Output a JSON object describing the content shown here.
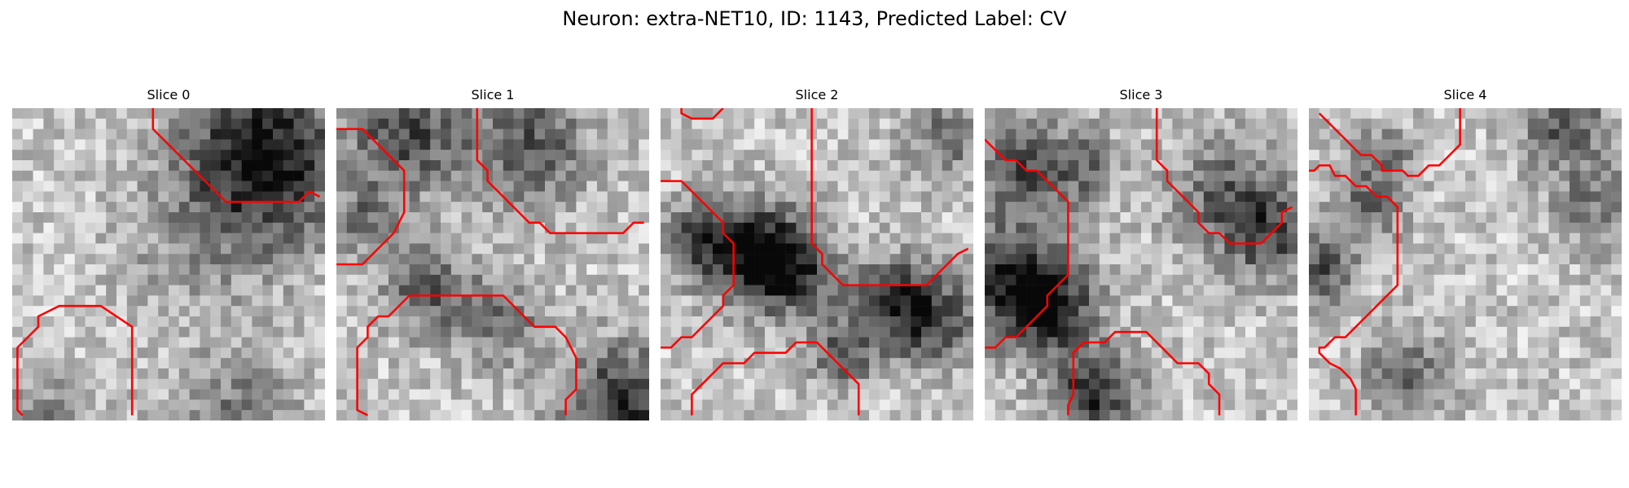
{
  "figure": {
    "title": "Neuron: extra-NET10, ID: 1143, Predicted Label: CV"
  },
  "contour_color": "#ff0000",
  "grid_size": 30,
  "slices": [
    {
      "title": "Slice 0",
      "seed": 11,
      "dark_blobs": [
        [
          23.5,
          4.5,
          5.5,
          0.75
        ],
        [
          21,
          29,
          4,
          0.3
        ],
        [
          3,
          29,
          3,
          0.25
        ],
        [
          17,
          14,
          5,
          0.15
        ]
      ],
      "contours": [
        [
          [
            13.5,
            0
          ],
          [
            13.5,
            2
          ],
          [
            14.5,
            3
          ],
          [
            15.5,
            4
          ],
          [
            16.5,
            5
          ],
          [
            17.5,
            6
          ],
          [
            18.5,
            7
          ],
          [
            19.5,
            8
          ],
          [
            20.5,
            9
          ],
          [
            27.5,
            9
          ],
          [
            28.5,
            8
          ],
          [
            29.5,
            8.5
          ]
        ],
        [
          [
            1,
            29.5
          ],
          [
            0.5,
            29
          ],
          [
            0.5,
            23
          ],
          [
            2.5,
            21
          ],
          [
            2.5,
            20
          ],
          [
            4.5,
            19
          ],
          [
            8.5,
            19
          ],
          [
            11.5,
            21
          ],
          [
            11.5,
            29.5
          ]
        ]
      ]
    },
    {
      "title": "Slice 1",
      "seed": 23,
      "dark_blobs": [
        [
          6,
          2,
          4,
          0.5
        ],
        [
          18,
          3,
          4,
          0.45
        ],
        [
          27,
          28,
          4,
          0.6
        ],
        [
          8,
          17,
          3,
          0.4
        ],
        [
          15,
          20,
          3,
          0.35
        ],
        [
          2,
          10,
          2.5,
          0.3
        ]
      ],
      "contours": [
        [
          [
            0,
            2
          ],
          [
            2.5,
            2
          ],
          [
            3.5,
            3
          ],
          [
            5.5,
            5
          ],
          [
            6.5,
            6
          ],
          [
            6.5,
            10
          ],
          [
            5.5,
            12
          ],
          [
            4.5,
            13
          ],
          [
            3.5,
            14
          ],
          [
            2.5,
            15
          ],
          [
            0,
            15
          ]
        ],
        [
          [
            13.5,
            0
          ],
          [
            13.5,
            5
          ],
          [
            14.5,
            6
          ],
          [
            14.5,
            7
          ],
          [
            15.5,
            8
          ],
          [
            16.5,
            9
          ],
          [
            17.5,
            10
          ],
          [
            18.5,
            11
          ],
          [
            19.5,
            11
          ],
          [
            20.5,
            12
          ],
          [
            27.5,
            12
          ],
          [
            28.5,
            11
          ],
          [
            29.5,
            11
          ]
        ],
        [
          [
            3,
            29.5
          ],
          [
            2,
            29
          ],
          [
            2,
            23
          ],
          [
            3,
            22
          ],
          [
            3,
            21
          ],
          [
            4,
            20
          ],
          [
            5,
            20
          ],
          [
            7,
            18
          ],
          [
            16,
            18
          ],
          [
            19,
            21
          ],
          [
            21,
            21
          ],
          [
            22,
            22
          ],
          [
            23,
            24
          ],
          [
            23,
            27
          ],
          [
            22,
            28
          ],
          [
            22,
            29.5
          ]
        ]
      ]
    },
    {
      "title": "Slice 2",
      "seed": 37,
      "dark_blobs": [
        [
          8,
          13,
          3.5,
          0.6
        ],
        [
          12,
          15,
          3,
          0.55
        ],
        [
          22,
          18,
          3,
          0.5
        ],
        [
          26,
          20,
          3,
          0.45
        ],
        [
          17,
          23,
          2.5,
          0.4
        ],
        [
          27,
          2,
          3,
          0.35
        ],
        [
          3,
          12,
          2.5,
          0.4
        ]
      ],
      "contours": [
        [
          [
            2,
            0
          ],
          [
            2,
            0.5
          ],
          [
            3,
            1
          ],
          [
            5,
            1
          ],
          [
            6,
            0
          ]
        ],
        [
          [
            0,
            7
          ],
          [
            2,
            7
          ],
          [
            3,
            8
          ],
          [
            4,
            9
          ],
          [
            5,
            10
          ],
          [
            6,
            11
          ],
          [
            6,
            12
          ],
          [
            7,
            13
          ],
          [
            7,
            17
          ],
          [
            6,
            18
          ],
          [
            6,
            19
          ],
          [
            5,
            20
          ],
          [
            4,
            21
          ],
          [
            3,
            22
          ],
          [
            2,
            22
          ],
          [
            1,
            23
          ],
          [
            0,
            23
          ]
        ],
        [
          [
            14.5,
            0
          ],
          [
            14.5,
            13
          ],
          [
            15.5,
            14
          ],
          [
            15.5,
            15
          ],
          [
            16.5,
            16
          ],
          [
            17.5,
            17
          ],
          [
            25.5,
            17
          ],
          [
            26.5,
            16
          ],
          [
            27.5,
            15
          ],
          [
            28.5,
            14
          ],
          [
            29.5,
            13.5
          ]
        ],
        [
          [
            3,
            29.5
          ],
          [
            3,
            27.5
          ],
          [
            4,
            26.5
          ],
          [
            5,
            25.5
          ],
          [
            6,
            24.5
          ],
          [
            8,
            24.5
          ],
          [
            9,
            23.5
          ],
          [
            12,
            23.5
          ],
          [
            13,
            22.5
          ],
          [
            15,
            22.5
          ],
          [
            16,
            23.5
          ],
          [
            17,
            24.5
          ],
          [
            18,
            25.5
          ],
          [
            19,
            26.5
          ],
          [
            19,
            29.5
          ]
        ]
      ]
    },
    {
      "title": "Slice 3",
      "seed": 53,
      "dark_blobs": [
        [
          2,
          16,
          4,
          0.6
        ],
        [
          6,
          19,
          3,
          0.5
        ],
        [
          10,
          27,
          3,
          0.6
        ],
        [
          23,
          8,
          4,
          0.4
        ],
        [
          3,
          5,
          3,
          0.45
        ],
        [
          27,
          12,
          3,
          0.4
        ],
        [
          9,
          5,
          2.5,
          0.35
        ]
      ],
      "contours": [
        [
          [
            0,
            3
          ],
          [
            1,
            4
          ],
          [
            2,
            5
          ],
          [
            3,
            5
          ],
          [
            4,
            6
          ],
          [
            5,
            6
          ],
          [
            6,
            7
          ],
          [
            7,
            8
          ],
          [
            8,
            9
          ],
          [
            8,
            16
          ],
          [
            7,
            17
          ],
          [
            6,
            18
          ],
          [
            6,
            19
          ],
          [
            5,
            20
          ],
          [
            4,
            21
          ],
          [
            3,
            22
          ],
          [
            2,
            22
          ],
          [
            1,
            23
          ],
          [
            0,
            23
          ]
        ],
        [
          [
            16.5,
            0
          ],
          [
            16.5,
            5
          ],
          [
            17.5,
            6
          ],
          [
            17.5,
            7
          ],
          [
            18.5,
            8
          ],
          [
            19.5,
            9
          ],
          [
            20.5,
            10
          ],
          [
            20.5,
            11
          ],
          [
            21.5,
            12
          ],
          [
            22.5,
            12
          ],
          [
            23.5,
            13
          ],
          [
            26.5,
            13
          ],
          [
            28.5,
            11
          ],
          [
            28.5,
            10
          ],
          [
            29.5,
            9.5
          ]
        ],
        [
          [
            8,
            29.5
          ],
          [
            8,
            28.5
          ],
          [
            8.5,
            27.5
          ],
          [
            8.5,
            23.5
          ],
          [
            9.5,
            22.5
          ],
          [
            11.5,
            22.5
          ],
          [
            12.5,
            21.5
          ],
          [
            15.5,
            21.5
          ],
          [
            16.5,
            22.5
          ],
          [
            17.5,
            23.5
          ],
          [
            18.5,
            24.5
          ],
          [
            20.5,
            24.5
          ],
          [
            21.5,
            25.5
          ],
          [
            21.5,
            26.5
          ],
          [
            22.5,
            27.5
          ],
          [
            22.5,
            29.5
          ]
        ]
      ]
    },
    {
      "title": "Slice 4",
      "seed": 71,
      "dark_blobs": [
        [
          24,
          1,
          3,
          0.45
        ],
        [
          0.5,
          15,
          2.5,
          0.45
        ],
        [
          5,
          9,
          2.5,
          0.35
        ],
        [
          9,
          25,
          3,
          0.35
        ],
        [
          27,
          9,
          3,
          0.3
        ],
        [
          7,
          4,
          2,
          0.3
        ]
      ],
      "contours": [
        [
          [
            1,
            0.5
          ],
          [
            2,
            1.5
          ],
          [
            3,
            2.5
          ],
          [
            4,
            3.5
          ],
          [
            5,
            4.5
          ],
          [
            6,
            4.5
          ],
          [
            7,
            5.5
          ],
          [
            7,
            6
          ],
          [
            9,
            6
          ],
          [
            9.5,
            6.5
          ],
          [
            10.5,
            6.5
          ],
          [
            11.5,
            5.5
          ],
          [
            12.5,
            5.5
          ],
          [
            13.5,
            4.5
          ],
          [
            14.5,
            3.5
          ],
          [
            14.5,
            0
          ]
        ],
        [
          [
            0,
            6
          ],
          [
            0.5,
            6
          ],
          [
            1,
            5.5
          ],
          [
            2,
            5.5
          ],
          [
            2.5,
            6.5
          ],
          [
            3.5,
            6.5
          ],
          [
            4.5,
            7.5
          ],
          [
            5.5,
            7.5
          ],
          [
            6.5,
            8.5
          ],
          [
            7.5,
            8.5
          ],
          [
            8.5,
            9.5
          ],
          [
            8.5,
            17
          ],
          [
            7.5,
            18
          ],
          [
            6.5,
            19
          ],
          [
            5.5,
            20
          ],
          [
            4.5,
            21
          ],
          [
            3.5,
            22
          ],
          [
            2.5,
            22
          ],
          [
            1.5,
            23
          ],
          [
            1,
            23
          ],
          [
            1,
            23.5
          ],
          [
            2,
            24.5
          ],
          [
            3,
            25
          ],
          [
            4,
            26
          ],
          [
            4.5,
            27
          ],
          [
            4.5,
            29.5
          ]
        ]
      ]
    }
  ]
}
